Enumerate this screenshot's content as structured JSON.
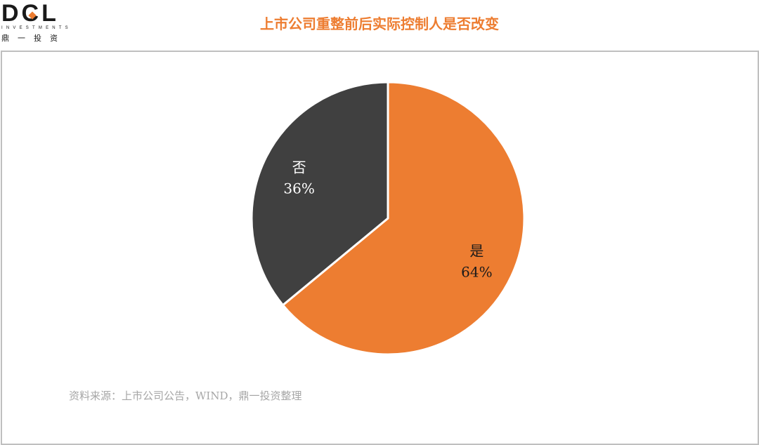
{
  "logo": {
    "mark": "DCL",
    "sub": "INVESTMENTS",
    "cn": "鼎一投资"
  },
  "header": {
    "title": "上市公司重整前后实际控制人是否改变"
  },
  "chart_data": {
    "type": "pie",
    "title": "上市公司重整前后实际控制人是否改变",
    "slices": [
      {
        "label": "是",
        "value": 64,
        "display": "64%",
        "color": "#ED7D31",
        "label_color": "#1a1a1a"
      },
      {
        "label": "否",
        "value": 36,
        "display": "36%",
        "color": "#404040",
        "label_color": "#ffffff"
      }
    ],
    "start": "12 o'clock",
    "direction": "clockwise",
    "legend": "none"
  },
  "footer": {
    "source": "资料来源：上市公司公告，WIND，鼎一投资整理"
  }
}
